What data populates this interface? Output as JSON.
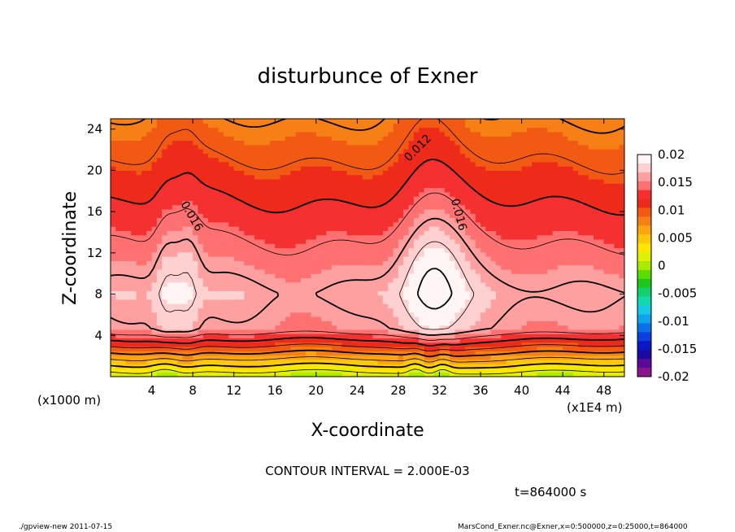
{
  "chart_data": {
    "type": "heatmap",
    "title": "disturbunce of Exner",
    "xlabel": "X-coordinate",
    "ylabel": "Z-coordinate",
    "x_unit_left": "(x1000 m)",
    "x_unit_right": "(x1E4 m)",
    "xlim": [
      0,
      50
    ],
    "ylim": [
      0,
      25
    ],
    "x_ticks": [
      "4",
      "8",
      "12",
      "16",
      "20",
      "24",
      "28",
      "32",
      "36",
      "40",
      "44",
      "48"
    ],
    "x_tick_values": [
      4,
      8,
      12,
      16,
      20,
      24,
      28,
      32,
      36,
      40,
      44,
      48
    ],
    "y_ticks": [
      "4",
      "8",
      "12",
      "16",
      "20",
      "24"
    ],
    "y_tick_values": [
      4,
      8,
      12,
      16,
      20,
      24
    ],
    "colorbar": {
      "labels": [
        "0.02",
        "0.015",
        "0.01",
        "0.005",
        "0",
        "-0.005",
        "-0.01",
        "-0.015",
        "-0.02"
      ],
      "values": [
        0.02,
        0.015,
        0.01,
        0.005,
        0,
        -0.005,
        -0.01,
        -0.015,
        -0.02
      ],
      "colors": [
        "#fff5f5",
        "#ffd0d0",
        "#ffa0a0",
        "#ff7070",
        "#f43030",
        "#ee2b1a",
        "#f25a14",
        "#f68016",
        "#fba513",
        "#fdc80b",
        "#fde700",
        "#dff000",
        "#a8ea00",
        "#5bdc00",
        "#1cc81c",
        "#10d070",
        "#12d8b0",
        "#14c8e6",
        "#0ea4ec",
        "#0a70e8",
        "#0a40dc",
        "#0a18c8",
        "#1c0aa0",
        "#5a0a96",
        "#8c148c"
      ]
    },
    "contour_labels": [
      "0.016",
      "0.012",
      "0.016"
    ],
    "contour_interval_text": "CONTOUR INTERVAL = 2.000E-03",
    "time_text": "t=864000 s",
    "footer_left": "./gpview-new   2011-07-15",
    "footer_right": "MarsCond_Exner.nc@Exner,x=0:500000,z=0:25000,t=864000",
    "field_notes": "Positive Exner disturbance everywhere; maxima (~0.02) near x=6-8 and x=30-33 at z~6-8; near-zero at surface, ~0.008 at top."
  }
}
